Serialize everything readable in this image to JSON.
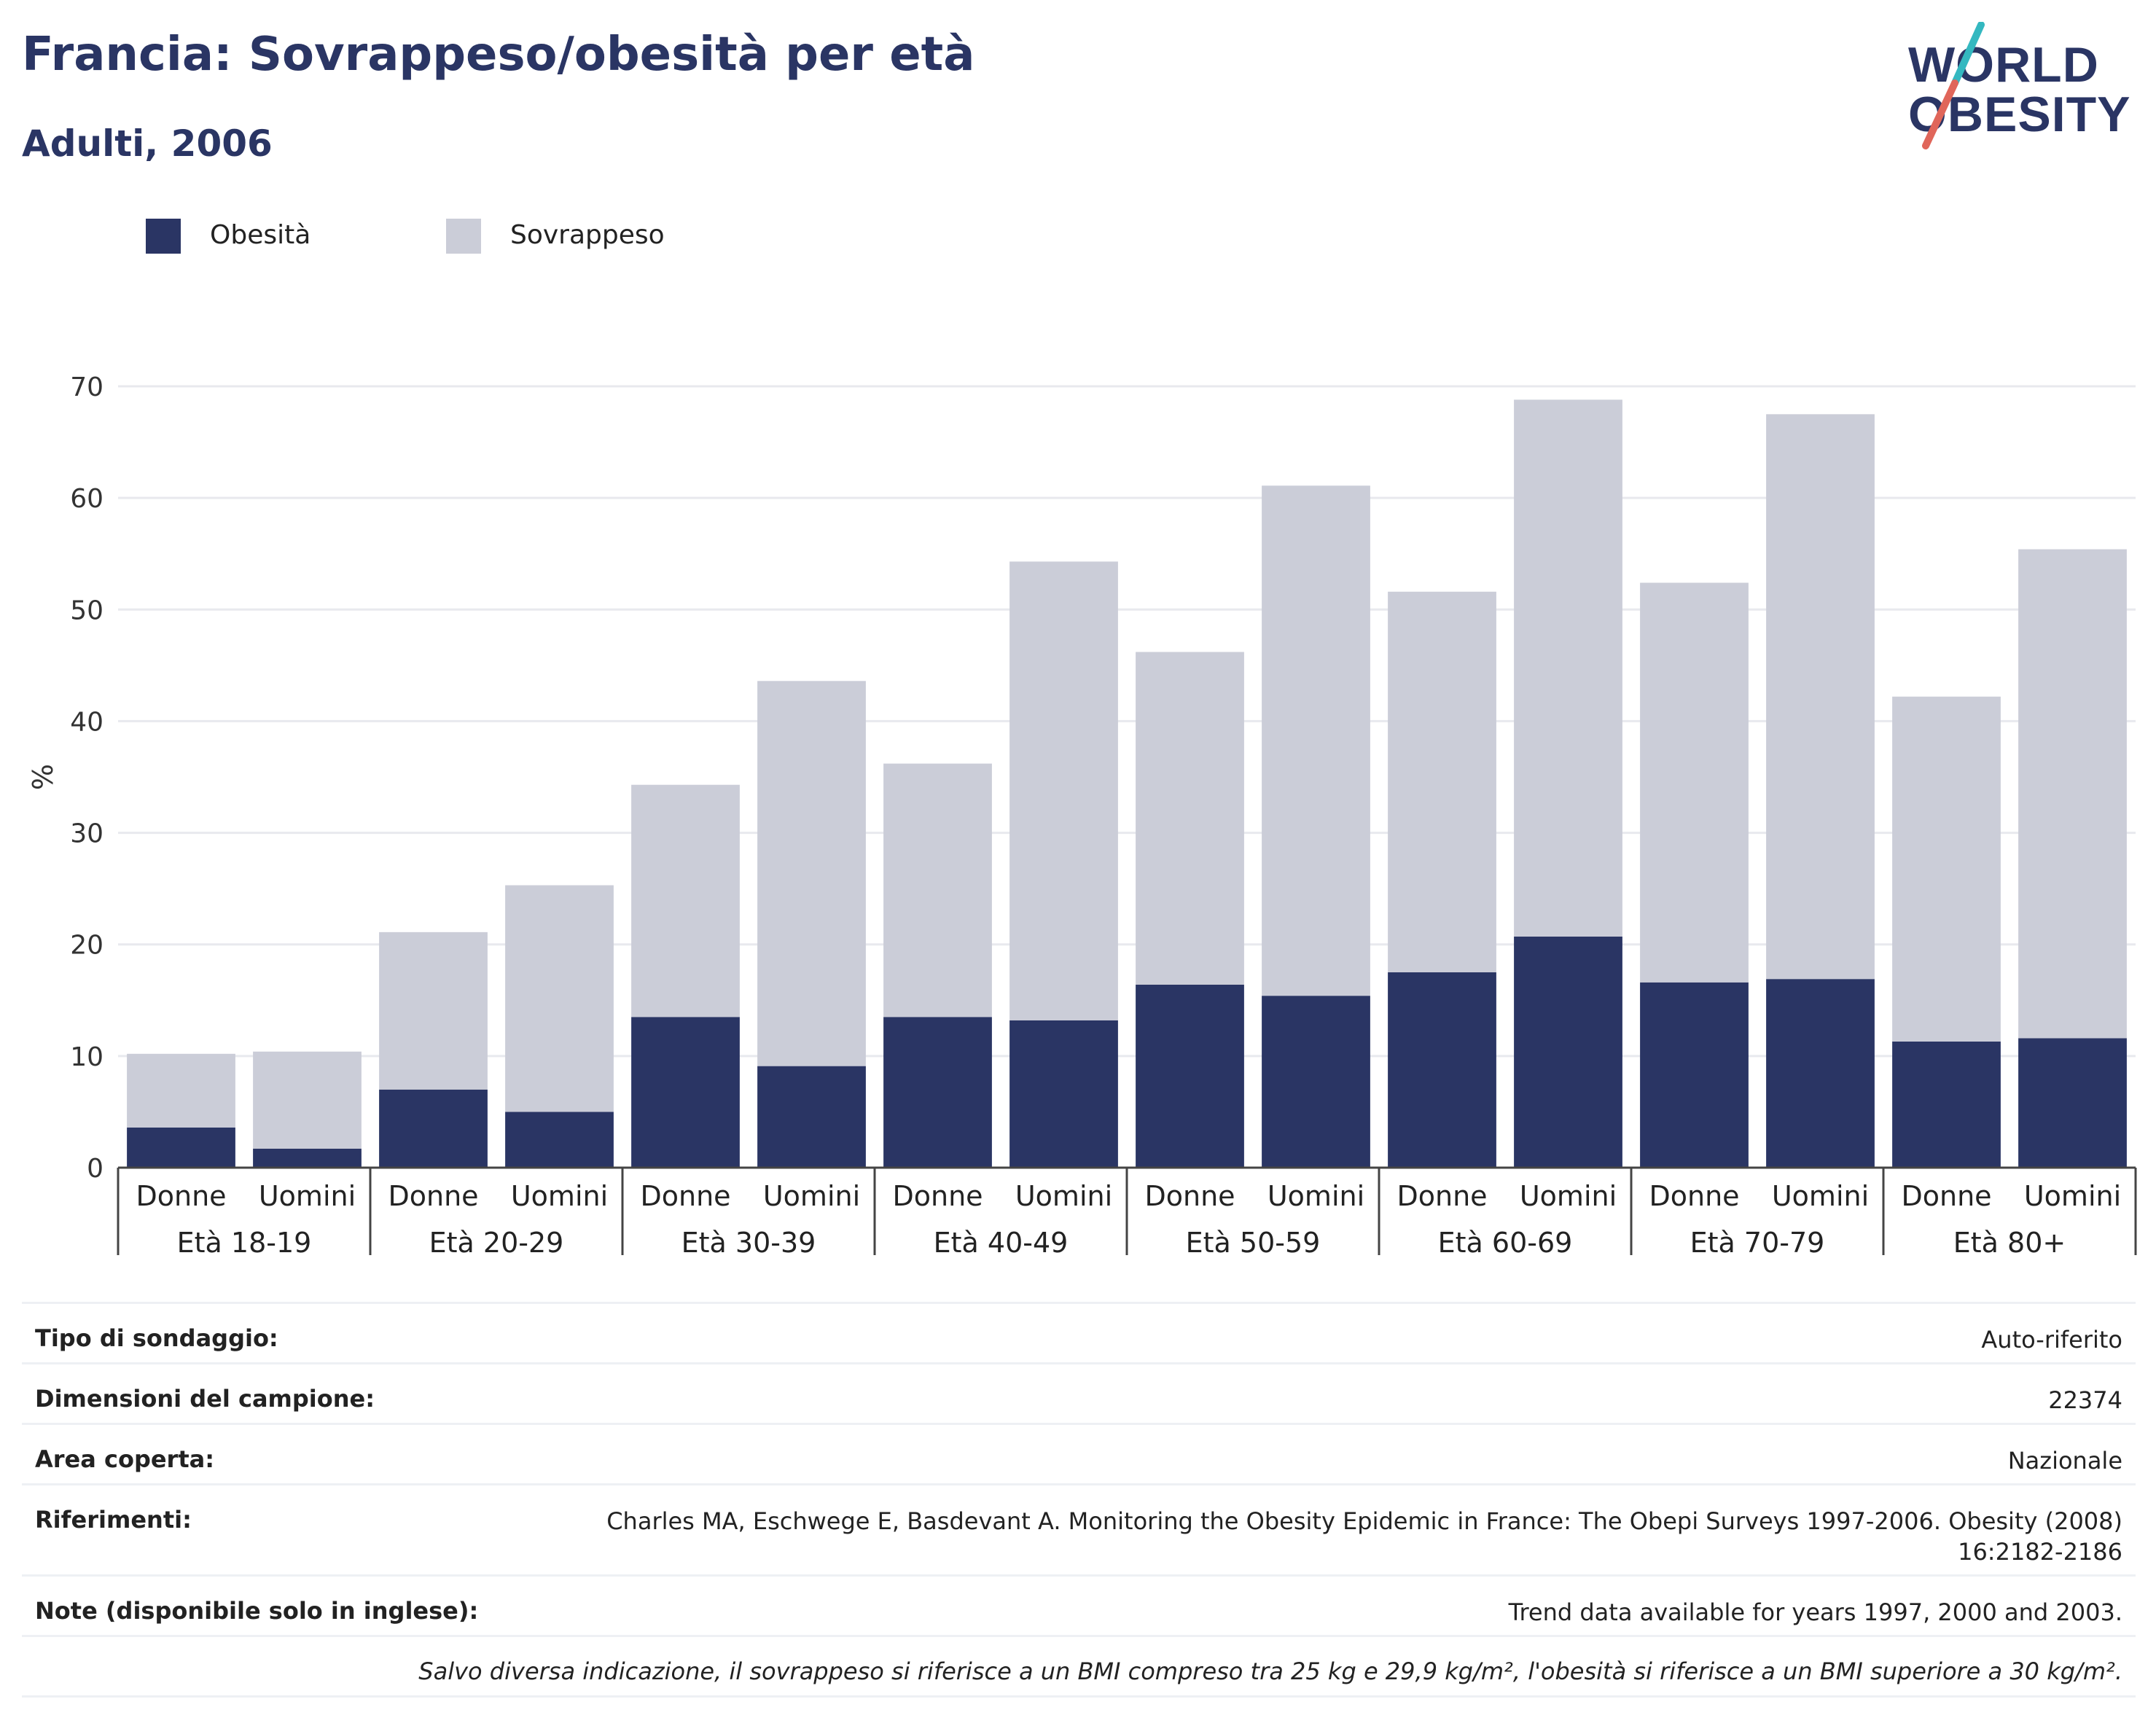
{
  "header": {
    "title": "Francia: Sovrappeso/obesità per età",
    "subtitle": "Adulti, 2006"
  },
  "logo": {
    "line1": "WORLD",
    "line2": "OBESITY",
    "slash_colors": [
      "#34b8c0",
      "#e0665a"
    ]
  },
  "legend": {
    "items": [
      {
        "label": "Obesità",
        "color": "#2a3564"
      },
      {
        "label": "Sovrappeso",
        "color": "#cbcdd8"
      }
    ]
  },
  "chart_data": {
    "type": "bar",
    "stacked": true,
    "ylabel": "%",
    "ylim": [
      0,
      70
    ],
    "yticks": [
      0,
      10,
      20,
      30,
      40,
      50,
      60,
      70
    ],
    "grid": true,
    "legend_position": "top-left",
    "groups": [
      "Età 18-19",
      "Età 20-29",
      "Età 30-39",
      "Età 40-49",
      "Età 50-59",
      "Età 60-69",
      "Età 70-79",
      "Età 80+"
    ],
    "subcategories": [
      "Donne",
      "Uomini"
    ],
    "series": [
      {
        "name": "Obesità",
        "color": "#2a3564",
        "values": [
          3.6,
          1.7,
          7.0,
          5.0,
          13.5,
          9.1,
          13.5,
          13.2,
          16.4,
          15.4,
          17.5,
          20.7,
          16.6,
          16.9,
          11.3,
          11.6
        ]
      },
      {
        "name": "Sovrappeso",
        "color": "#cbcdd8",
        "values": [
          6.6,
          8.7,
          14.1,
          20.3,
          20.8,
          34.5,
          22.7,
          41.1,
          29.8,
          45.7,
          34.1,
          48.1,
          35.8,
          50.6,
          30.9,
          43.8
        ]
      }
    ]
  },
  "meta": {
    "survey_type": {
      "label": "Tipo di sondaggio:",
      "value": "Auto-riferito"
    },
    "sample_size": {
      "label": "Dimensioni del campione:",
      "value": "22374"
    },
    "area": {
      "label": "Area coperta:",
      "value": "Nazionale"
    },
    "references": {
      "label": "Riferimenti:",
      "value": "Charles MA, Eschwege E, Basdevant A. Monitoring the Obesity Epidemic in France: The Obepi Surveys 1997-2006. Obesity (2008) 16:2182-2186"
    },
    "notes": {
      "label": "Note (disponibile solo in inglese):",
      "value": "Trend data available for years 1997, 2000 and 2003."
    },
    "footnote": "Salvo diversa indicazione, il sovrappeso si riferisce a un BMI compreso tra 25 kg e 29,9 kg/m², l'obesità si riferisce a un BMI superiore a 30 kg/m²."
  }
}
